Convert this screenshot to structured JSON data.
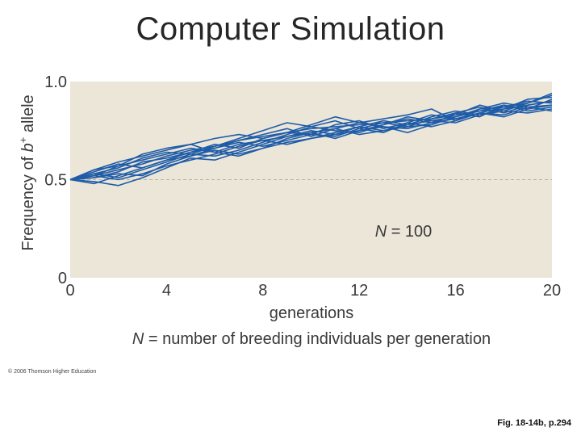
{
  "slide": {
    "title": "Computer Simulation",
    "copyright": "© 2006 Thomson Higher Education",
    "figure_ref": "Fig. 18-14b, p.294"
  },
  "colors": {
    "plot_background": "#ebe6d8",
    "line": "#1f5ca8",
    "axis_text": "#3a3a3a",
    "dashed_ref": "#b8b2a2"
  },
  "chart_data": {
    "type": "line",
    "title": "",
    "xlabel": "generations",
    "ylabel": "Frequency of b⁺ allele",
    "ylabel_parts": {
      "before": "Frequency of ",
      "italic": "b",
      "sup": "+",
      "after": " allele"
    },
    "caption": {
      "italic": "N",
      "text": " = number of breeding individuals per generation"
    },
    "annotation": {
      "italic": "N",
      "text": " = 100"
    },
    "xlim": [
      0,
      20
    ],
    "ylim": [
      0,
      1.0
    ],
    "xticks": [
      0,
      4,
      8,
      12,
      16,
      20
    ],
    "yticks": [
      {
        "value": 0,
        "label": "0"
      },
      {
        "value": 0.5,
        "label": "0.5"
      },
      {
        "value": 1.0,
        "label": "1.0"
      }
    ],
    "reference_line": 0.5,
    "x": [
      0,
      1,
      2,
      3,
      4,
      5,
      6,
      7,
      8,
      9,
      10,
      11,
      12,
      13,
      14,
      15,
      16,
      17,
      18,
      19,
      20
    ],
    "series": [
      {
        "values": [
          0.5,
          0.52,
          0.55,
          0.58,
          0.62,
          0.65,
          0.67,
          0.7,
          0.72,
          0.74,
          0.76,
          0.77,
          0.78,
          0.79,
          0.8,
          0.81,
          0.83,
          0.85,
          0.86,
          0.88,
          0.9
        ]
      },
      {
        "values": [
          0.5,
          0.55,
          0.57,
          0.6,
          0.63,
          0.66,
          0.64,
          0.68,
          0.7,
          0.72,
          0.74,
          0.76,
          0.73,
          0.75,
          0.78,
          0.8,
          0.82,
          0.86,
          0.87,
          0.89,
          0.93
        ]
      },
      {
        "values": [
          0.5,
          0.48,
          0.52,
          0.56,
          0.6,
          0.62,
          0.65,
          0.63,
          0.66,
          0.69,
          0.71,
          0.73,
          0.75,
          0.77,
          0.76,
          0.79,
          0.81,
          0.84,
          0.82,
          0.86,
          0.88
        ]
      },
      {
        "values": [
          0.5,
          0.53,
          0.51,
          0.55,
          0.59,
          0.63,
          0.62,
          0.65,
          0.69,
          0.73,
          0.77,
          0.75,
          0.74,
          0.78,
          0.82,
          0.8,
          0.79,
          0.83,
          0.85,
          0.84,
          0.86
        ]
      },
      {
        "values": [
          0.5,
          0.51,
          0.54,
          0.59,
          0.61,
          0.64,
          0.68,
          0.66,
          0.71,
          0.74,
          0.73,
          0.72,
          0.76,
          0.79,
          0.77,
          0.81,
          0.84,
          0.87,
          0.84,
          0.88,
          0.9
        ]
      },
      {
        "values": [
          0.5,
          0.52,
          0.5,
          0.53,
          0.57,
          0.6,
          0.63,
          0.67,
          0.7,
          0.68,
          0.71,
          0.74,
          0.77,
          0.75,
          0.77,
          0.78,
          0.82,
          0.85,
          0.88,
          0.85,
          0.87
        ]
      },
      {
        "values": [
          0.5,
          0.54,
          0.58,
          0.56,
          0.6,
          0.64,
          0.66,
          0.69,
          0.67,
          0.7,
          0.73,
          0.78,
          0.8,
          0.76,
          0.79,
          0.83,
          0.81,
          0.84,
          0.87,
          0.9,
          0.89
        ]
      },
      {
        "values": [
          0.5,
          0.49,
          0.47,
          0.51,
          0.56,
          0.61,
          0.6,
          0.64,
          0.68,
          0.72,
          0.75,
          0.73,
          0.77,
          0.8,
          0.78,
          0.82,
          0.85,
          0.83,
          0.86,
          0.91,
          0.92
        ]
      },
      {
        "values": [
          0.5,
          0.53,
          0.56,
          0.61,
          0.64,
          0.63,
          0.67,
          0.71,
          0.75,
          0.79,
          0.77,
          0.8,
          0.76,
          0.74,
          0.79,
          0.77,
          0.8,
          0.86,
          0.89,
          0.87,
          0.85
        ]
      },
      {
        "values": [
          0.5,
          0.55,
          0.59,
          0.62,
          0.65,
          0.68,
          0.64,
          0.62,
          0.66,
          0.71,
          0.74,
          0.71,
          0.75,
          0.78,
          0.81,
          0.79,
          0.83,
          0.88,
          0.85,
          0.89,
          0.94
        ]
      },
      {
        "values": [
          0.5,
          0.51,
          0.53,
          0.52,
          0.58,
          0.62,
          0.66,
          0.7,
          0.73,
          0.76,
          0.72,
          0.76,
          0.79,
          0.77,
          0.74,
          0.78,
          0.84,
          0.82,
          0.88,
          0.86,
          0.91
        ]
      },
      {
        "values": [
          0.5,
          0.52,
          0.57,
          0.63,
          0.66,
          0.68,
          0.71,
          0.73,
          0.71,
          0.74,
          0.78,
          0.82,
          0.79,
          0.81,
          0.83,
          0.86,
          0.8,
          0.84,
          0.83,
          0.87,
          0.88
        ]
      }
    ]
  }
}
